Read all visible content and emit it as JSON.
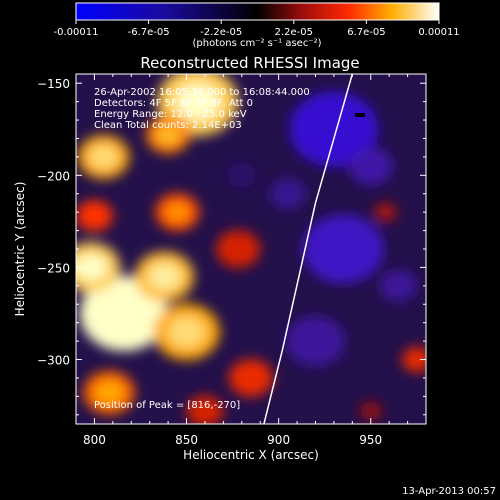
{
  "colorbar": {
    "tick_labels": [
      "-0.00011",
      "-6.7e-05",
      "-2.2e-05",
      "2.2e-05",
      "6.7e-05",
      "0.00011"
    ],
    "unit_label": "(photons cm⁻² s⁻¹ asec⁻²)"
  },
  "footer": {
    "timestamp": "13-Apr-2013 00:57"
  },
  "chart_data": {
    "type": "heatmap",
    "title": "Reconstructed RHESSI Image",
    "xlabel": "Heliocentric X (arcsec)",
    "ylabel": "Heliocentric Y (arcsec)",
    "xlim": [
      790,
      980
    ],
    "ylim": [
      -335,
      -145
    ],
    "x_ticks": [
      800,
      850,
      900,
      950
    ],
    "y_ticks": [
      -150,
      -200,
      -250,
      -300
    ],
    "x_tick_labels": [
      "800",
      "850",
      "900",
      "950"
    ],
    "y_tick_labels": [
      "−150",
      "−200",
      "−250",
      "−300"
    ],
    "value_range": [
      -0.00011,
      0.00011
    ],
    "annotations": [
      "26-Apr-2002 16:05:34.000 to 16:08:44.000",
      "Detectors: 4F 5F 6F 7F 8F, Att 0",
      "Energy Range: 12.0 - 25.0 keV",
      "Clean    Total counts: 2.14E+03"
    ],
    "peak_label": "Position of Peak = [816,-270]",
    "peak": [
      816,
      -270
    ],
    "limb_curve": [
      [
        940,
        -145
      ],
      [
        930,
        -180
      ],
      [
        920,
        -215
      ],
      [
        911,
        -255
      ],
      [
        902,
        -295
      ],
      [
        892,
        -335
      ]
    ],
    "blobs": [
      {
        "x": 816,
        "y": -275,
        "r": 24,
        "v": 1.0
      },
      {
        "x": 798,
        "y": -250,
        "r": 16,
        "v": 0.85
      },
      {
        "x": 838,
        "y": -255,
        "r": 16,
        "v": 0.8
      },
      {
        "x": 850,
        "y": -285,
        "r": 18,
        "v": 0.75
      },
      {
        "x": 808,
        "y": -318,
        "r": 14,
        "v": 0.6
      },
      {
        "x": 856,
        "y": -160,
        "r": 22,
        "v": 0.85
      },
      {
        "x": 805,
        "y": -190,
        "r": 14,
        "v": 0.75
      },
      {
        "x": 840,
        "y": -178,
        "r": 12,
        "v": 0.65
      },
      {
        "x": 800,
        "y": -222,
        "r": 10,
        "v": 0.5
      },
      {
        "x": 845,
        "y": -220,
        "r": 12,
        "v": 0.55
      },
      {
        "x": 878,
        "y": -240,
        "r": 12,
        "v": 0.4
      },
      {
        "x": 885,
        "y": -310,
        "r": 12,
        "v": 0.45
      },
      {
        "x": 860,
        "y": -328,
        "r": 10,
        "v": 0.4
      },
      {
        "x": 975,
        "y": -300,
        "r": 8,
        "v": 0.45
      },
      {
        "x": 958,
        "y": -220,
        "r": 6,
        "v": 0.3
      },
      {
        "x": 950,
        "y": -328,
        "r": 6,
        "v": 0.25
      },
      {
        "x": 930,
        "y": -175,
        "r": 24,
        "v": -0.65
      },
      {
        "x": 935,
        "y": -240,
        "r": 22,
        "v": -0.55
      },
      {
        "x": 920,
        "y": -290,
        "r": 16,
        "v": -0.35
      },
      {
        "x": 950,
        "y": -195,
        "r": 12,
        "v": -0.4
      },
      {
        "x": 905,
        "y": -210,
        "r": 10,
        "v": -0.3
      },
      {
        "x": 965,
        "y": -260,
        "r": 10,
        "v": -0.35
      },
      {
        "x": 880,
        "y": -200,
        "r": 8,
        "v": -0.15
      }
    ]
  }
}
